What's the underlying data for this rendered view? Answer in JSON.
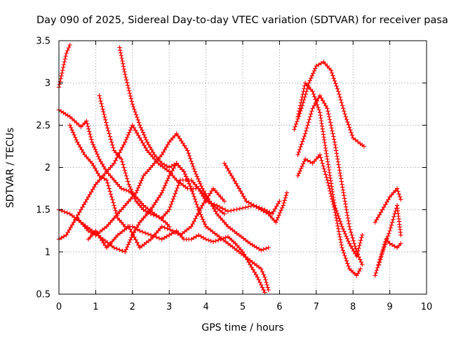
{
  "chart_data": {
    "type": "scatter",
    "title": "Day 090 of 2025, Sidereal Day-to-day VTEC variation (SDTVAR) for receiver pasa",
    "xlabel": "GPS time / hours",
    "ylabel": "SDTVAR / TECUs",
    "xlim": [
      0,
      10
    ],
    "ylim": [
      0.5,
      3.5
    ],
    "xticks": [
      0,
      1,
      2,
      3,
      4,
      5,
      6,
      7,
      8,
      9,
      10
    ],
    "yticks": [
      0.5,
      1,
      1.5,
      2,
      2.5,
      3,
      3.5
    ],
    "grid": true,
    "marker": "plus",
    "color": "#ff0000",
    "series": [
      {
        "name": "s1",
        "x": [
          0.0,
          0.1,
          0.2,
          0.3
        ],
        "y": [
          2.95,
          3.15,
          3.35,
          3.45
        ]
      },
      {
        "name": "s2",
        "x": [
          0.0,
          0.3,
          0.6,
          0.75,
          0.9,
          1.1,
          1.3,
          1.5,
          1.7,
          1.9,
          2.1,
          2.3,
          2.6,
          2.9,
          3.0
        ],
        "y": [
          2.68,
          2.6,
          2.48,
          2.55,
          2.3,
          2.1,
          1.95,
          1.85,
          1.75,
          1.72,
          1.65,
          1.55,
          1.45,
          1.35,
          1.3
        ]
      },
      {
        "name": "s3",
        "x": [
          0.3,
          0.5,
          0.7,
          0.9,
          1.1,
          1.3,
          1.5,
          1.6,
          1.8,
          2.0,
          2.2,
          2.5,
          2.8,
          3.0,
          3.2,
          3.4,
          3.6,
          3.8,
          4.0,
          4.2,
          4.4,
          4.6,
          4.8,
          5.0,
          5.2,
          5.4,
          5.6
        ],
        "y": [
          2.5,
          2.3,
          2.15,
          2.05,
          1.9,
          1.85,
          1.55,
          1.4,
          1.3,
          1.3,
          1.25,
          1.2,
          1.15,
          1.2,
          1.25,
          1.15,
          1.15,
          1.2,
          1.15,
          1.12,
          1.15,
          1.18,
          1.1,
          1.0,
          0.85,
          0.7,
          0.52
        ]
      },
      {
        "name": "s4",
        "x": [
          0.0,
          0.3,
          0.6,
          0.9,
          1.2,
          1.5,
          1.8,
          2.0,
          2.2,
          2.5,
          2.8,
          3.0,
          3.2,
          3.4,
          3.6
        ],
        "y": [
          1.5,
          1.45,
          1.35,
          1.25,
          1.15,
          1.05,
          1.0,
          1.2,
          1.35,
          1.5,
          1.7,
          1.9,
          2.05,
          1.95,
          1.75
        ]
      },
      {
        "name": "s5",
        "x": [
          0.0,
          0.2,
          0.4,
          0.6,
          0.8,
          1.0,
          1.2,
          1.5,
          1.8,
          2.0,
          2.2,
          2.4,
          2.7,
          3.0,
          3.2,
          3.5,
          3.8,
          4.0,
          4.3,
          4.6,
          5.0,
          5.3,
          5.6,
          5.8,
          6.0
        ],
        "y": [
          1.15,
          1.2,
          1.35,
          1.5,
          1.65,
          1.8,
          1.9,
          2.05,
          2.3,
          2.5,
          2.35,
          2.2,
          2.05,
          1.95,
          1.85,
          1.75,
          1.75,
          1.6,
          1.55,
          1.48,
          1.52,
          1.55,
          1.5,
          1.45,
          1.6
        ]
      },
      {
        "name": "s6",
        "x": [
          0.5,
          0.8,
          1.0,
          1.3,
          1.6,
          1.9,
          2.1,
          2.3,
          2.5,
          2.8,
          3.0,
          3.2,
          3.5,
          3.7,
          3.9,
          4.1,
          4.3,
          4.6,
          4.9,
          5.2,
          5.5,
          5.7
        ],
        "y": [
          1.4,
          1.25,
          1.2,
          1.3,
          1.45,
          1.6,
          1.7,
          1.9,
          2.0,
          2.15,
          2.3,
          2.4,
          2.2,
          1.95,
          1.75,
          1.6,
          1.45,
          1.3,
          1.2,
          1.1,
          1.02,
          1.05
        ]
      },
      {
        "name": "s7",
        "x": [
          1.1,
          1.3,
          1.5,
          1.7,
          1.9,
          2.1,
          2.3,
          2.5,
          2.8,
          3.0,
          3.3,
          3.6,
          3.9,
          4.2,
          4.5
        ],
        "y": [
          2.85,
          2.5,
          2.2,
          2.1,
          1.8,
          1.6,
          1.5,
          1.45,
          1.4,
          1.5,
          1.85,
          1.85,
          1.7,
          1.55,
          1.45
        ]
      },
      {
        "name": "s8",
        "x": [
          1.65,
          1.8,
          2.0,
          2.2,
          2.4,
          2.6,
          2.8,
          3.0,
          3.2,
          3.4,
          3.6,
          3.8,
          4.0,
          4.3,
          4.6,
          4.9,
          5.2,
          5.5,
          5.6,
          5.7
        ],
        "y": [
          3.42,
          3.1,
          2.75,
          2.5,
          2.3,
          2.15,
          2.05,
          2.0,
          2.05,
          1.95,
          1.75,
          1.5,
          1.3,
          1.2,
          1.1,
          1.0,
          0.9,
          0.8,
          0.7,
          0.55
        ]
      },
      {
        "name": "s9",
        "x": [
          0.8,
          1.0,
          1.3,
          1.6,
          1.9,
          2.2,
          2.5,
          2.8,
          3.1,
          3.3,
          3.6,
          3.9,
          4.2,
          4.5
        ],
        "y": [
          1.15,
          1.25,
          1.05,
          1.2,
          1.3,
          1.05,
          1.15,
          1.3,
          1.25,
          1.2,
          1.3,
          1.55,
          1.75,
          1.6
        ]
      },
      {
        "name": "s10",
        "x": [
          4.5,
          4.7,
          4.9,
          5.1,
          5.3,
          5.5,
          5.7,
          5.9,
          6.1,
          6.2
        ],
        "y": [
          2.05,
          1.9,
          1.75,
          1.6,
          1.55,
          1.5,
          1.45,
          1.35,
          1.55,
          1.7
        ]
      },
      {
        "name": "s11",
        "x": [
          6.4,
          6.6,
          6.8,
          7.0,
          7.2,
          7.4,
          7.6,
          7.8,
          8.0,
          8.2,
          8.3
        ],
        "y": [
          2.45,
          2.7,
          3.0,
          3.2,
          3.25,
          3.15,
          2.9,
          2.6,
          2.35,
          2.28,
          2.25
        ]
      },
      {
        "name": "s12",
        "x": [
          6.5,
          6.7,
          6.9,
          7.1,
          7.3,
          7.5,
          7.7,
          7.9,
          8.1,
          8.25
        ],
        "y": [
          2.6,
          3.0,
          2.9,
          2.65,
          2.1,
          1.55,
          1.3,
          1.1,
          0.95,
          1.2
        ]
      },
      {
        "name": "s13",
        "x": [
          6.5,
          6.7,
          6.9,
          7.1,
          7.3,
          7.5,
          7.7,
          7.9,
          8.1,
          8.25
        ],
        "y": [
          2.15,
          2.4,
          2.7,
          2.85,
          2.7,
          2.3,
          1.8,
          1.3,
          1.0,
          0.85
        ]
      },
      {
        "name": "s14",
        "x": [
          6.5,
          6.7,
          6.9,
          7.1,
          7.3,
          7.5,
          7.7,
          7.9,
          8.1,
          8.2
        ],
        "y": [
          1.9,
          2.1,
          2.05,
          2.15,
          1.85,
          1.5,
          1.05,
          0.8,
          0.72,
          0.8
        ]
      },
      {
        "name": "s15",
        "x": [
          8.6,
          8.8,
          9.0,
          9.2,
          9.3
        ],
        "y": [
          1.35,
          1.5,
          1.65,
          1.75,
          1.62
        ]
      },
      {
        "name": "s16",
        "x": [
          8.6,
          8.8,
          9.0,
          9.2,
          9.3
        ],
        "y": [
          0.72,
          1.0,
          1.25,
          1.55,
          1.2
        ]
      },
      {
        "name": "s17",
        "x": [
          8.7,
          8.9,
          9.0,
          9.2,
          9.3
        ],
        "y": [
          0.85,
          1.15,
          1.1,
          1.05,
          1.1
        ]
      }
    ]
  }
}
